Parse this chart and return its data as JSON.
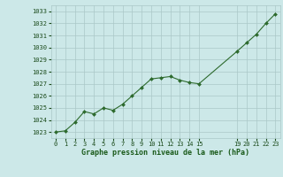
{
  "x": [
    0,
    1,
    2,
    3,
    4,
    5,
    6,
    7,
    8,
    9,
    10,
    11,
    12,
    13,
    14,
    15,
    19,
    20,
    21,
    22,
    23
  ],
  "y": [
    1023.0,
    1023.1,
    1023.8,
    1024.7,
    1024.5,
    1025.0,
    1024.8,
    1025.3,
    1026.0,
    1026.7,
    1027.4,
    1027.5,
    1027.6,
    1027.3,
    1027.1,
    1027.0,
    1029.7,
    1030.4,
    1031.1,
    1032.0,
    1032.8
  ],
  "x_ticks": [
    0,
    1,
    2,
    3,
    4,
    5,
    6,
    7,
    8,
    9,
    10,
    11,
    12,
    13,
    14,
    15,
    19,
    20,
    21,
    22,
    23
  ],
  "x_tick_labels": [
    "0",
    "1",
    "2",
    "3",
    "4",
    "5",
    "6",
    "7",
    "8",
    "9",
    "10",
    "11",
    "12",
    "13",
    "14",
    "15",
    "19",
    "20",
    "21",
    "22",
    "23"
  ],
  "ylim": [
    1022.5,
    1033.5
  ],
  "yticks": [
    1023,
    1024,
    1025,
    1026,
    1027,
    1028,
    1029,
    1030,
    1031,
    1032,
    1033
  ],
  "xlabel": "Graphe pression niveau de la mer (hPa)",
  "line_color": "#2d6a2d",
  "marker_color": "#2d6a2d",
  "bg_color": "#cce8e8",
  "grid_color": "#aac8c8",
  "tick_color": "#1a4a1a",
  "xlabel_color": "#1a5a1a",
  "xlim": [
    -0.5,
    23.5
  ]
}
